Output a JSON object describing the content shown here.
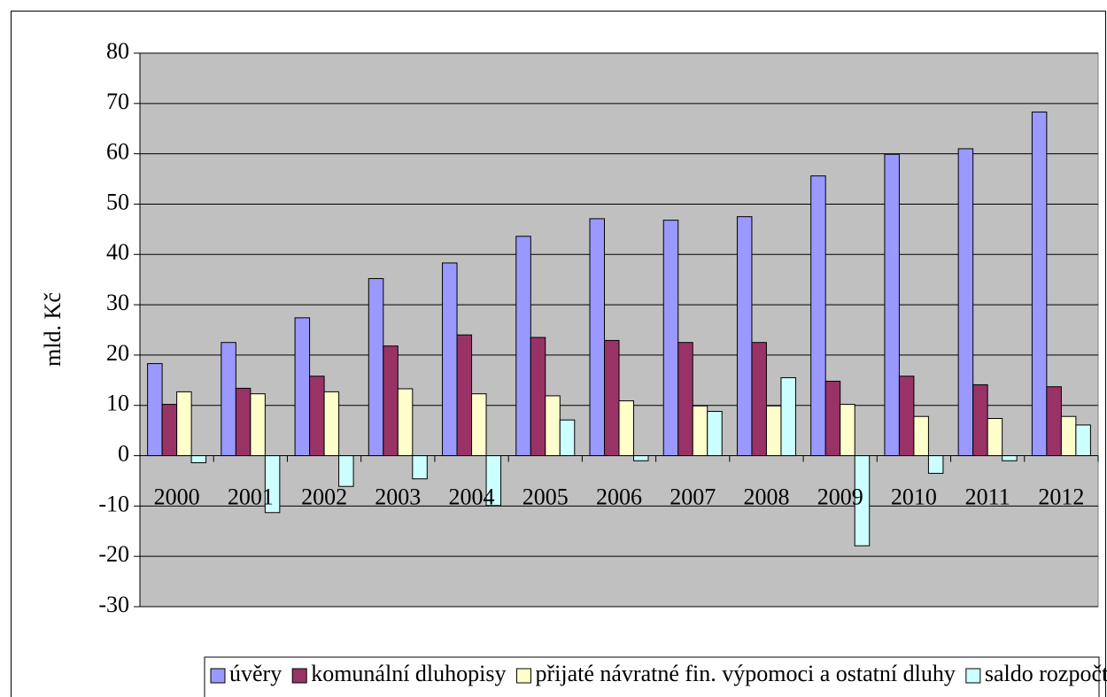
{
  "chart_data": {
    "type": "bar",
    "y_label": "mld. Kč",
    "categories": [
      "2000",
      "2001",
      "2002",
      "2003",
      "2004",
      "2005",
      "2006",
      "2007",
      "2008",
      "2009",
      "2010",
      "2011",
      "2012"
    ],
    "series": [
      {
        "name": "úvěry",
        "color": "#9999ff",
        "values": [
          18.3,
          22.5,
          27.4,
          35.2,
          38.3,
          43.6,
          47.1,
          46.8,
          47.5,
          55.6,
          59.9,
          61.0,
          68.3
        ]
      },
      {
        "name": "komunální dluhopisy",
        "color": "#993366",
        "values": [
          10.2,
          13.4,
          15.8,
          21.8,
          24.0,
          23.5,
          22.9,
          22.5,
          22.5,
          14.8,
          15.8,
          14.1,
          13.7
        ]
      },
      {
        "name": "přijaté návratné fin. výpomoci a ostatní dluhy",
        "color": "#ffffcc",
        "values": [
          12.7,
          12.3,
          12.7,
          13.3,
          12.3,
          11.9,
          10.9,
          9.9,
          9.9,
          10.2,
          7.8,
          7.4,
          7.8
        ]
      },
      {
        "name": "saldo rozpočtů",
        "color": "#ccffff",
        "values": [
          -1.4,
          -11.3,
          -6.1,
          -4.6,
          -9.9,
          7.1,
          -1.0,
          8.8,
          15.5,
          -17.9,
          -3.5,
          -1.0,
          6.1
        ]
      }
    ],
    "ylim": [
      -30,
      80
    ],
    "yticks": [
      -30,
      -20,
      -10,
      0,
      10,
      20,
      30,
      40,
      50,
      60,
      70,
      80
    ],
    "grid": true,
    "legend": "bottom",
    "plot_background": "#c0c0c0"
  }
}
